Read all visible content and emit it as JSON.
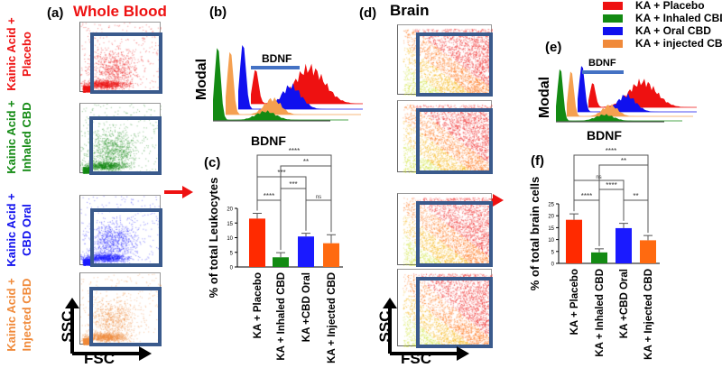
{
  "panel_a": {
    "label": "(a)",
    "title": "Whole Blood",
    "rows": [
      "Kainic Acid + Placebo",
      "Kainic Acid + Inhaled CBD",
      "Kainic Acid + CBD Oral",
      "Kainic Acid + Injected CBD"
    ],
    "y_axis": "SSC",
    "x_axis": "FSC"
  },
  "panel_b": {
    "label": "(b)",
    "ylabel": "Modal",
    "xlabel": "BDNF",
    "gate_label": "BDNF"
  },
  "panel_d": {
    "label": "(d)",
    "title": "Brain",
    "y_axis": "SSC",
    "x_axis": "FSC"
  },
  "panel_e": {
    "label": "(e)",
    "ylabel": "Modal",
    "xlabel": "BDNF",
    "gate_label": "BDNF"
  },
  "legend": [
    {
      "label": "KA + Placebo",
      "color": "#ee1111"
    },
    {
      "label": "KA + Inhaled CBD",
      "color": "#138a13"
    },
    {
      "label": "KA + Oral CBD",
      "color": "#1010ee"
    },
    {
      "label": "KA + injected CBD",
      "color": "#f08a3a"
    }
  ],
  "colors": {
    "placebo": "#ff2a00",
    "inhaled": "#138a13",
    "oral": "#1a1aff",
    "injected": "#ff6a10",
    "gate": "#3a5a8c",
    "arrow": "#ee1111"
  },
  "chart_data": [
    {
      "type": "bar",
      "label": "(c)",
      "title": "",
      "xlabel": "",
      "ylabel": "% of total Leukocytes",
      "categories": [
        "KA + Placebo",
        "KA + Inhaled CBD",
        "KA +CBD Oral",
        "KA + Injected CBD"
      ],
      "values": [
        16.5,
        3.3,
        10.4,
        8.1
      ],
      "errors": [
        1.8,
        1.6,
        1.1,
        2.9
      ],
      "ylim": [
        0,
        20
      ],
      "yticks": [
        "0",
        "5",
        "10",
        "15",
        "20"
      ],
      "grid": false,
      "significance": [
        {
          "pair": [
            0,
            3
          ],
          "label": "****"
        },
        {
          "pair": [
            1,
            3
          ],
          "label": "**"
        },
        {
          "pair": [
            0,
            2
          ],
          "label": "***"
        },
        {
          "pair": [
            1,
            2
          ],
          "label": "***"
        },
        {
          "pair": [
            0,
            1
          ],
          "label": "****"
        },
        {
          "pair": [
            2,
            3
          ],
          "label": "ns"
        }
      ]
    },
    {
      "type": "bar",
      "label": "(f)",
      "title": "",
      "xlabel": "",
      "ylabel": "% of total brain cells",
      "categories": [
        "KA + Placebo",
        "KA + Inhaled CBD",
        "KA +CBD Oral",
        "KA + Injected CBD"
      ],
      "values": [
        18.3,
        4.6,
        14.8,
        9.7
      ],
      "errors": [
        2.5,
        1.5,
        2.0,
        2.0
      ],
      "ylim": [
        0,
        25
      ],
      "yticks": [
        "0",
        "5",
        "10",
        "15",
        "20",
        "25"
      ],
      "grid": false,
      "significance": [
        {
          "pair": [
            0,
            3
          ],
          "label": "****"
        },
        {
          "pair": [
            1,
            3
          ],
          "label": "**"
        },
        {
          "pair": [
            0,
            2
          ],
          "label": "ns"
        },
        {
          "pair": [
            1,
            2
          ],
          "label": "****"
        },
        {
          "pair": [
            0,
            1
          ],
          "label": "****"
        },
        {
          "pair": [
            2,
            3
          ],
          "label": "**"
        }
      ]
    }
  ]
}
